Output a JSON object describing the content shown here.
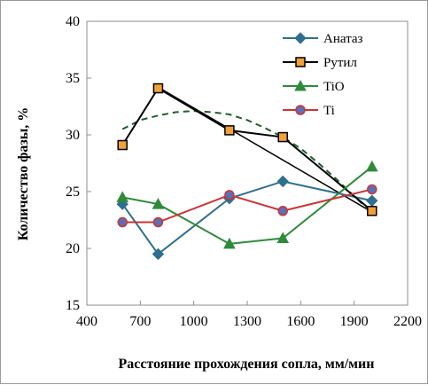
{
  "chart_data": {
    "type": "line",
    "title": "",
    "xlabel": "Расстояние прохождения сопла, мм/мин",
    "ylabel": "Количество фазы, %",
    "xlim": [
      400,
      2200
    ],
    "ylim": [
      15,
      40
    ],
    "xticks": [
      400,
      700,
      1000,
      1300,
      1600,
      1900,
      2200
    ],
    "yticks": [
      15,
      20,
      25,
      30,
      35,
      40
    ],
    "xtick_labels": [
      "400",
      "700",
      "1000",
      "1300",
      "1600",
      "1900",
      "2200"
    ],
    "ytick_labels": [
      "15",
      "20",
      "25",
      "30",
      "35",
      "40"
    ],
    "grid": false,
    "legend_position": "top-right",
    "series": [
      {
        "name": "Анатаз",
        "x": [
          600,
          800,
          1200,
          1500,
          2000
        ],
        "y": [
          23.9,
          19.5,
          24.4,
          25.9,
          24.2
        ],
        "color": "#2e6f8e",
        "marker": "diamond"
      },
      {
        "name": "Рутил",
        "x": [
          600,
          800,
          1200,
          1500,
          2000
        ],
        "y": [
          29.1,
          34.1,
          30.4,
          29.8,
          23.3
        ],
        "color": "#000000",
        "marker": "square",
        "marker_fill": "#f2a03a"
      },
      {
        "name": "TiO",
        "x": [
          600,
          800,
          1200,
          1500,
          2000
        ],
        "y": [
          24.5,
          23.9,
          20.4,
          20.9,
          27.2
        ],
        "color": "#2e8b3a",
        "marker": "triangle"
      },
      {
        "name": "Ti",
        "x": [
          600,
          800,
          1200,
          1500,
          2000
        ],
        "y": [
          22.3,
          22.3,
          24.7,
          23.3,
          25.2
        ],
        "color": "#cc3333",
        "marker": "circle",
        "marker_fill": "#5a6fb5"
      }
    ],
    "trend_lines": [
      {
        "style": "solid",
        "color": "#000000",
        "x": [
          800,
          2000
        ],
        "y": [
          34.2,
          23.2
        ]
      },
      {
        "style": "dashed",
        "color": "#1f5f2a",
        "x": [
          600,
          700,
          800,
          900,
          1000,
          1100,
          1200,
          1300,
          1400,
          1500,
          1600,
          1700,
          1800,
          1900,
          2000
        ],
        "y": [
          30.5,
          31.3,
          31.7,
          32.0,
          32.1,
          32.0,
          31.8,
          31.3,
          30.6,
          29.8,
          28.8,
          27.5,
          26.1,
          24.6,
          23.1
        ]
      }
    ]
  }
}
